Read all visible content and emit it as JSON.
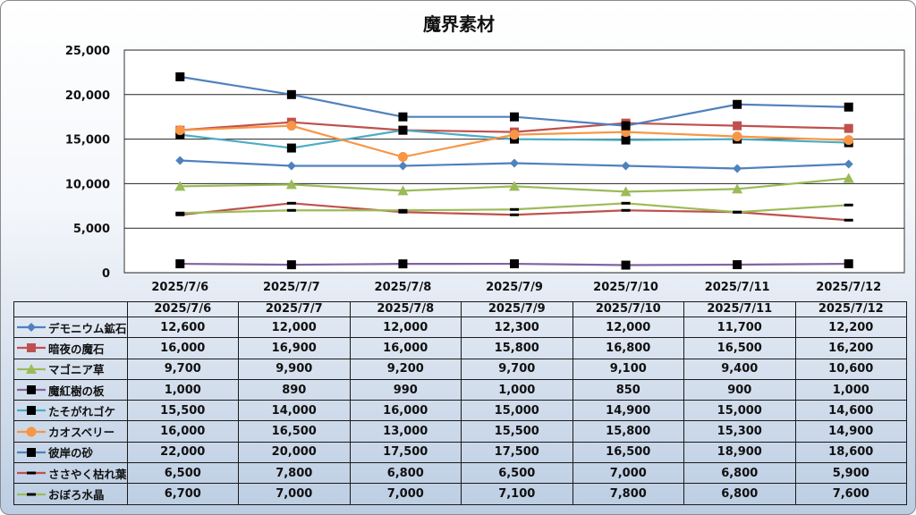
{
  "chart_data": {
    "type": "line",
    "title": "魔界素材",
    "categories": [
      "2025/7/6",
      "2025/7/7",
      "2025/7/8",
      "2025/7/9",
      "2025/7/10",
      "2025/7/11",
      "2025/7/12"
    ],
    "ylim": [
      0,
      25000
    ],
    "yticks": [
      "0",
      "5,000",
      "10,000",
      "15,000",
      "20,000",
      "25,000"
    ],
    "grid": true,
    "legend": "data-table",
    "series": [
      {
        "name": "デモニウム鉱石",
        "color": "#4f81bd",
        "marker": "diamond",
        "values": [
          12600,
          12000,
          12000,
          12300,
          12000,
          11700,
          12200
        ],
        "labels": [
          "12,600",
          "12,000",
          "12,000",
          "12,300",
          "12,000",
          "11,700",
          "12,200"
        ]
      },
      {
        "name": "暗夜の魔石",
        "color": "#c0504d",
        "marker": "square",
        "values": [
          16000,
          16900,
          16000,
          15800,
          16800,
          16500,
          16200
        ],
        "labels": [
          "16,000",
          "16,900",
          "16,000",
          "15,800",
          "16,800",
          "16,500",
          "16,200"
        ]
      },
      {
        "name": "マゴニア草",
        "color": "#9bbb59",
        "marker": "triangle",
        "values": [
          9700,
          9900,
          9200,
          9700,
          9100,
          9400,
          10600
        ],
        "labels": [
          "9,700",
          "9,900",
          "9,200",
          "9,700",
          "9,100",
          "9,400",
          "10,600"
        ]
      },
      {
        "name": "魔紅樹の板",
        "color": "#8064a2",
        "marker": "blacksquare",
        "values": [
          1000,
          890,
          990,
          1000,
          850,
          900,
          1000
        ],
        "labels": [
          "1,000",
          "890",
          "990",
          "1,000",
          "850",
          "900",
          "1,000"
        ]
      },
      {
        "name": "たそがれゴケ",
        "color": "#4bacc6",
        "marker": "blacksquare",
        "values": [
          15500,
          14000,
          16000,
          15000,
          14900,
          15000,
          14600
        ],
        "labels": [
          "15,500",
          "14,000",
          "16,000",
          "15,000",
          "14,900",
          "15,000",
          "14,600"
        ]
      },
      {
        "name": "カオスベリー",
        "color": "#f79646",
        "marker": "circle",
        "values": [
          16000,
          16500,
          13000,
          15500,
          15800,
          15300,
          14900
        ],
        "labels": [
          "16,000",
          "16,500",
          "13,000",
          "15,500",
          "15,800",
          "15,300",
          "14,900"
        ]
      },
      {
        "name": "彼岸の砂",
        "color": "#4f81bd",
        "marker": "blacksquare",
        "values": [
          22000,
          20000,
          17500,
          17500,
          16500,
          18900,
          18600
        ],
        "labels": [
          "22,000",
          "20,000",
          "17,500",
          "17,500",
          "16,500",
          "18,900",
          "18,600"
        ]
      },
      {
        "name": "ささやく枯れ葉",
        "color": "#c0504d",
        "marker": "dash",
        "values": [
          6500,
          7800,
          6800,
          6500,
          7000,
          6800,
          5900
        ],
        "labels": [
          "6,500",
          "7,800",
          "6,800",
          "6,500",
          "7,000",
          "6,800",
          "5,900"
        ]
      },
      {
        "name": "おぼろ水晶",
        "color": "#9bbb59",
        "marker": "dash",
        "values": [
          6700,
          7000,
          7000,
          7100,
          7800,
          6800,
          7600
        ],
        "labels": [
          "6,700",
          "7,000",
          "7,000",
          "7,100",
          "7,800",
          "6,800",
          "7,600"
        ]
      }
    ]
  }
}
